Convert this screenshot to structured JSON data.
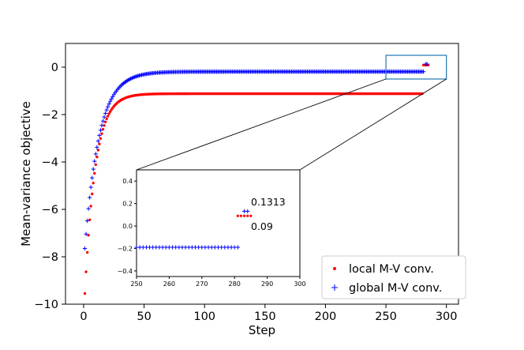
{
  "chart_data": {
    "type": "scatter",
    "xlabel": "Step",
    "ylabel": "Mean-variance objective",
    "xlim": [
      -15,
      310
    ],
    "ylim": [
      -10.0,
      1.0
    ],
    "xticks": [
      0,
      50,
      100,
      150,
      200,
      250,
      300
    ],
    "yticks": [
      -10,
      -8,
      -6,
      -4,
      -2,
      0
    ],
    "ytick_labels": [
      "−10",
      "−8",
      "−6",
      "−4",
      "−2",
      "0"
    ],
    "legend_position": "bottom-right",
    "series": [
      {
        "name": "local M-V conv.",
        "marker": "dot",
        "color": "#ff0000",
        "x_start": 1,
        "x_end": 280,
        "curve": {
          "asymptote": -1.12,
          "initial": -9.55,
          "rate": 0.115
        },
        "final_value": 0.09
      },
      {
        "name": "global M-V conv.",
        "marker": "plus",
        "color": "#0000ff",
        "x_start": 1,
        "x_end": 281,
        "curve": {
          "asymptote": -0.19,
          "initial": -7.65,
          "rate": 0.085
        },
        "final_value": 0.1313
      }
    ],
    "zoom_box": {
      "xlim": [
        250,
        300
      ],
      "ylim": [
        -0.5,
        0.5
      ]
    },
    "inset": {
      "xlim": [
        250,
        300
      ],
      "ylim": [
        -0.45,
        0.5
      ],
      "xticks": [
        250,
        260,
        270,
        280,
        290,
        300
      ],
      "yticks": [
        -0.4,
        -0.2,
        0.0,
        0.2,
        0.4
      ],
      "ytick_labels": [
        "−0.4",
        "−0.2",
        "0.0",
        "0.2",
        "0.4"
      ],
      "local_points": {
        "x": [
          281,
          282,
          283,
          284,
          285
        ],
        "y": 0.09
      },
      "global_flat": {
        "x_start": 250,
        "x_end": 281,
        "y": -0.19
      },
      "global_jump": {
        "x": [
          283,
          284
        ],
        "y": 0.1313
      },
      "annotations": [
        {
          "text": "0.1313",
          "x": 286,
          "y": 0.22
        },
        {
          "text": "0.09",
          "x": 286,
          "y": 0.0
        }
      ]
    }
  }
}
